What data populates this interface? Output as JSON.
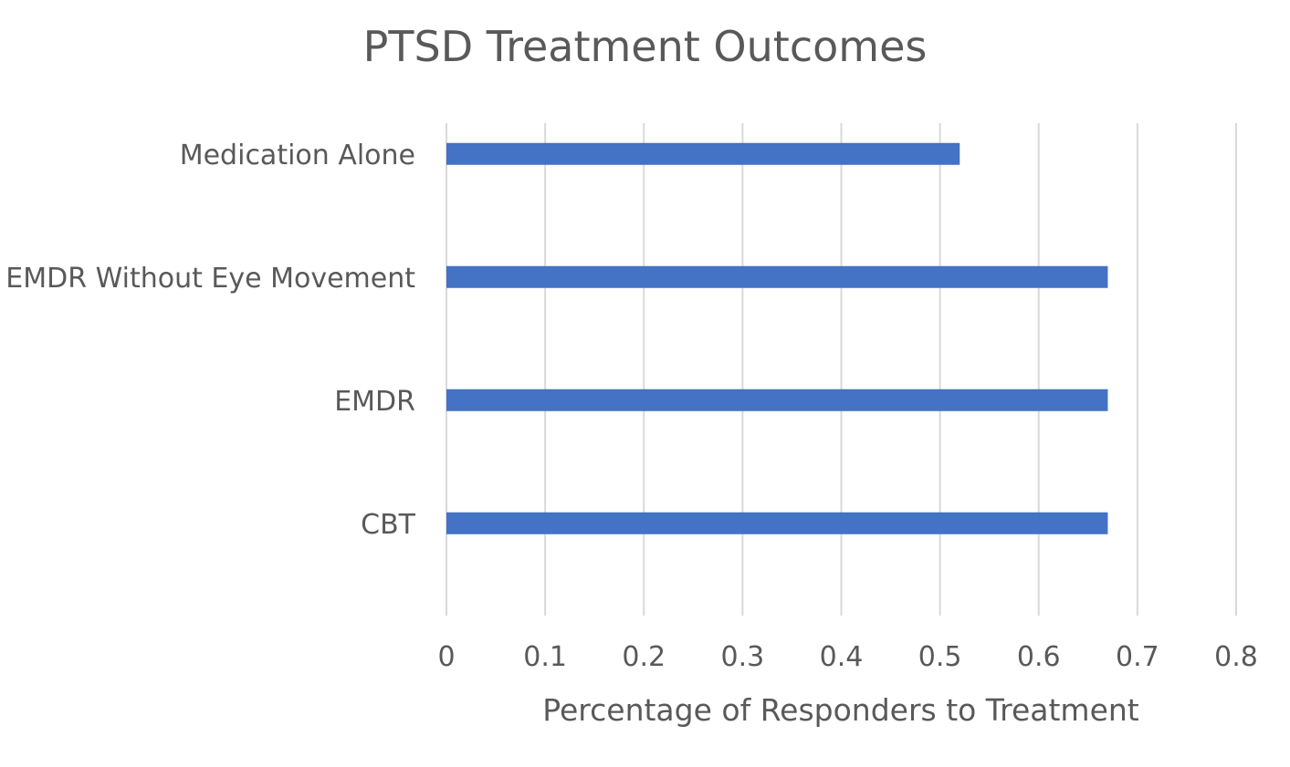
{
  "chart_data": {
    "type": "bar",
    "orientation": "horizontal",
    "title": "PTSD Treatment Outcomes",
    "xlabel": "Percentage of Responders to Treatment",
    "ylabel": "",
    "categories": [
      "Medication Alone",
      "EMDR Without Eye Movement",
      "EMDR",
      "CBT"
    ],
    "values": [
      0.52,
      0.67,
      0.67,
      0.67
    ],
    "xlim": [
      0,
      0.8
    ],
    "xticks": [
      "0",
      "0.1",
      "0.2",
      "0.3",
      "0.4",
      "0.5",
      "0.6",
      "0.7",
      "0.8"
    ],
    "grid": true,
    "legend": "none",
    "colors": {
      "bar": "#4472C4",
      "grid": "#D9D9D9",
      "text": "#595959"
    }
  }
}
